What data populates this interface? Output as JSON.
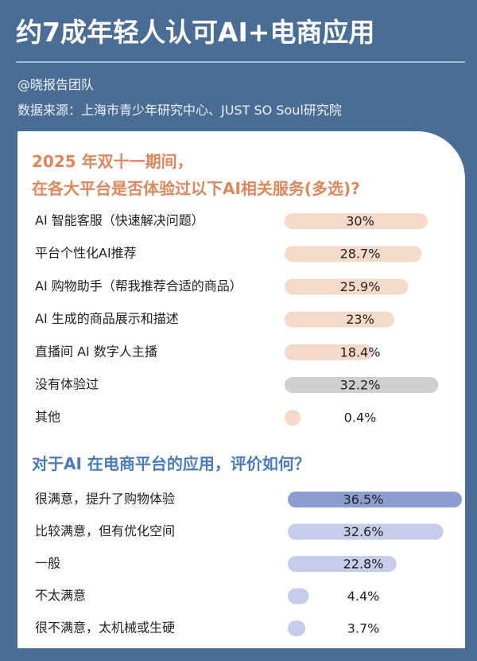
{
  "header": {
    "title": "约7成年轻人认可AI+电商应用",
    "author": "@晓报告团队",
    "source": "数据来源：上海市青少年研究中心、JUST SO Soul研究院"
  },
  "chart_data": [
    {
      "type": "bar",
      "orientation": "horizontal",
      "title": "2025 年双十一期间，\n在各大平台是否体验过以下AI相关服务(多选)?",
      "categories": [
        "AI 智能客服（快速解决问题）",
        "平台个性化AI推荐",
        "AI 购物助手（帮我推荐合适的商品）",
        "AI 生成的商品展示和描述",
        "直播间 AI 数字人主播",
        "没有体验过",
        "其他"
      ],
      "values": [
        30,
        28.7,
        25.9,
        23,
        18.4,
        32.2,
        0.4
      ],
      "value_labels": [
        "30%",
        "28.7%",
        "25.9%",
        "23%",
        "18.4%",
        "32.2%",
        "0.4%"
      ],
      "colors": [
        "#f6dac8",
        "#f6dac8",
        "#f6dac8",
        "#f6dac8",
        "#f6dac8",
        "#cfcfcf",
        "#f6dac8"
      ]
    },
    {
      "type": "bar",
      "orientation": "horizontal",
      "title": "对于AI 在电商平台的应用，评价如何？",
      "categories": [
        "很满意，提升了购物体验",
        "比较满意，但有优化空间",
        "一般",
        "不太满意",
        "很不满意，太机械或生硬"
      ],
      "values": [
        36.5,
        32.6,
        22.8,
        4.4,
        3.7
      ],
      "value_labels": [
        "36.5%",
        "32.6%",
        "22.8%",
        "4.4%",
        "3.7%"
      ],
      "colors": [
        "#8c9dcf",
        "#c5cdea",
        "#c5cdea",
        "#c5cdea",
        "#c5cdea"
      ]
    }
  ]
}
